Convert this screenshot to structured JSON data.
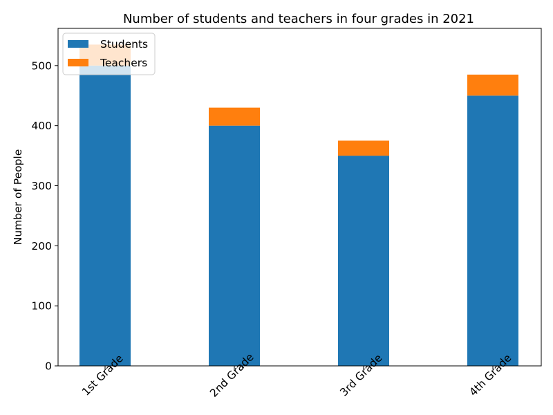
{
  "chart_data": {
    "type": "bar",
    "stacked": true,
    "title": "Number of students and teachers in four grades in 2021",
    "xlabel": "",
    "ylabel": "Number of People",
    "categories": [
      "1st Grade",
      "2nd Grade",
      "3rd Grade",
      "4th Grade"
    ],
    "series": [
      {
        "name": "Students",
        "color": "#1f77b4",
        "values": [
          500,
          400,
          350,
          450
        ]
      },
      {
        "name": "Teachers",
        "color": "#ff7f0e",
        "values": [
          35,
          30,
          25,
          35
        ]
      }
    ],
    "ylim": [
      0,
      562
    ],
    "yticks": [
      0,
      100,
      200,
      300,
      400,
      500
    ],
    "grid": false,
    "legend": "upper-left",
    "legend_labels": [
      "Students",
      "Teachers"
    ]
  }
}
